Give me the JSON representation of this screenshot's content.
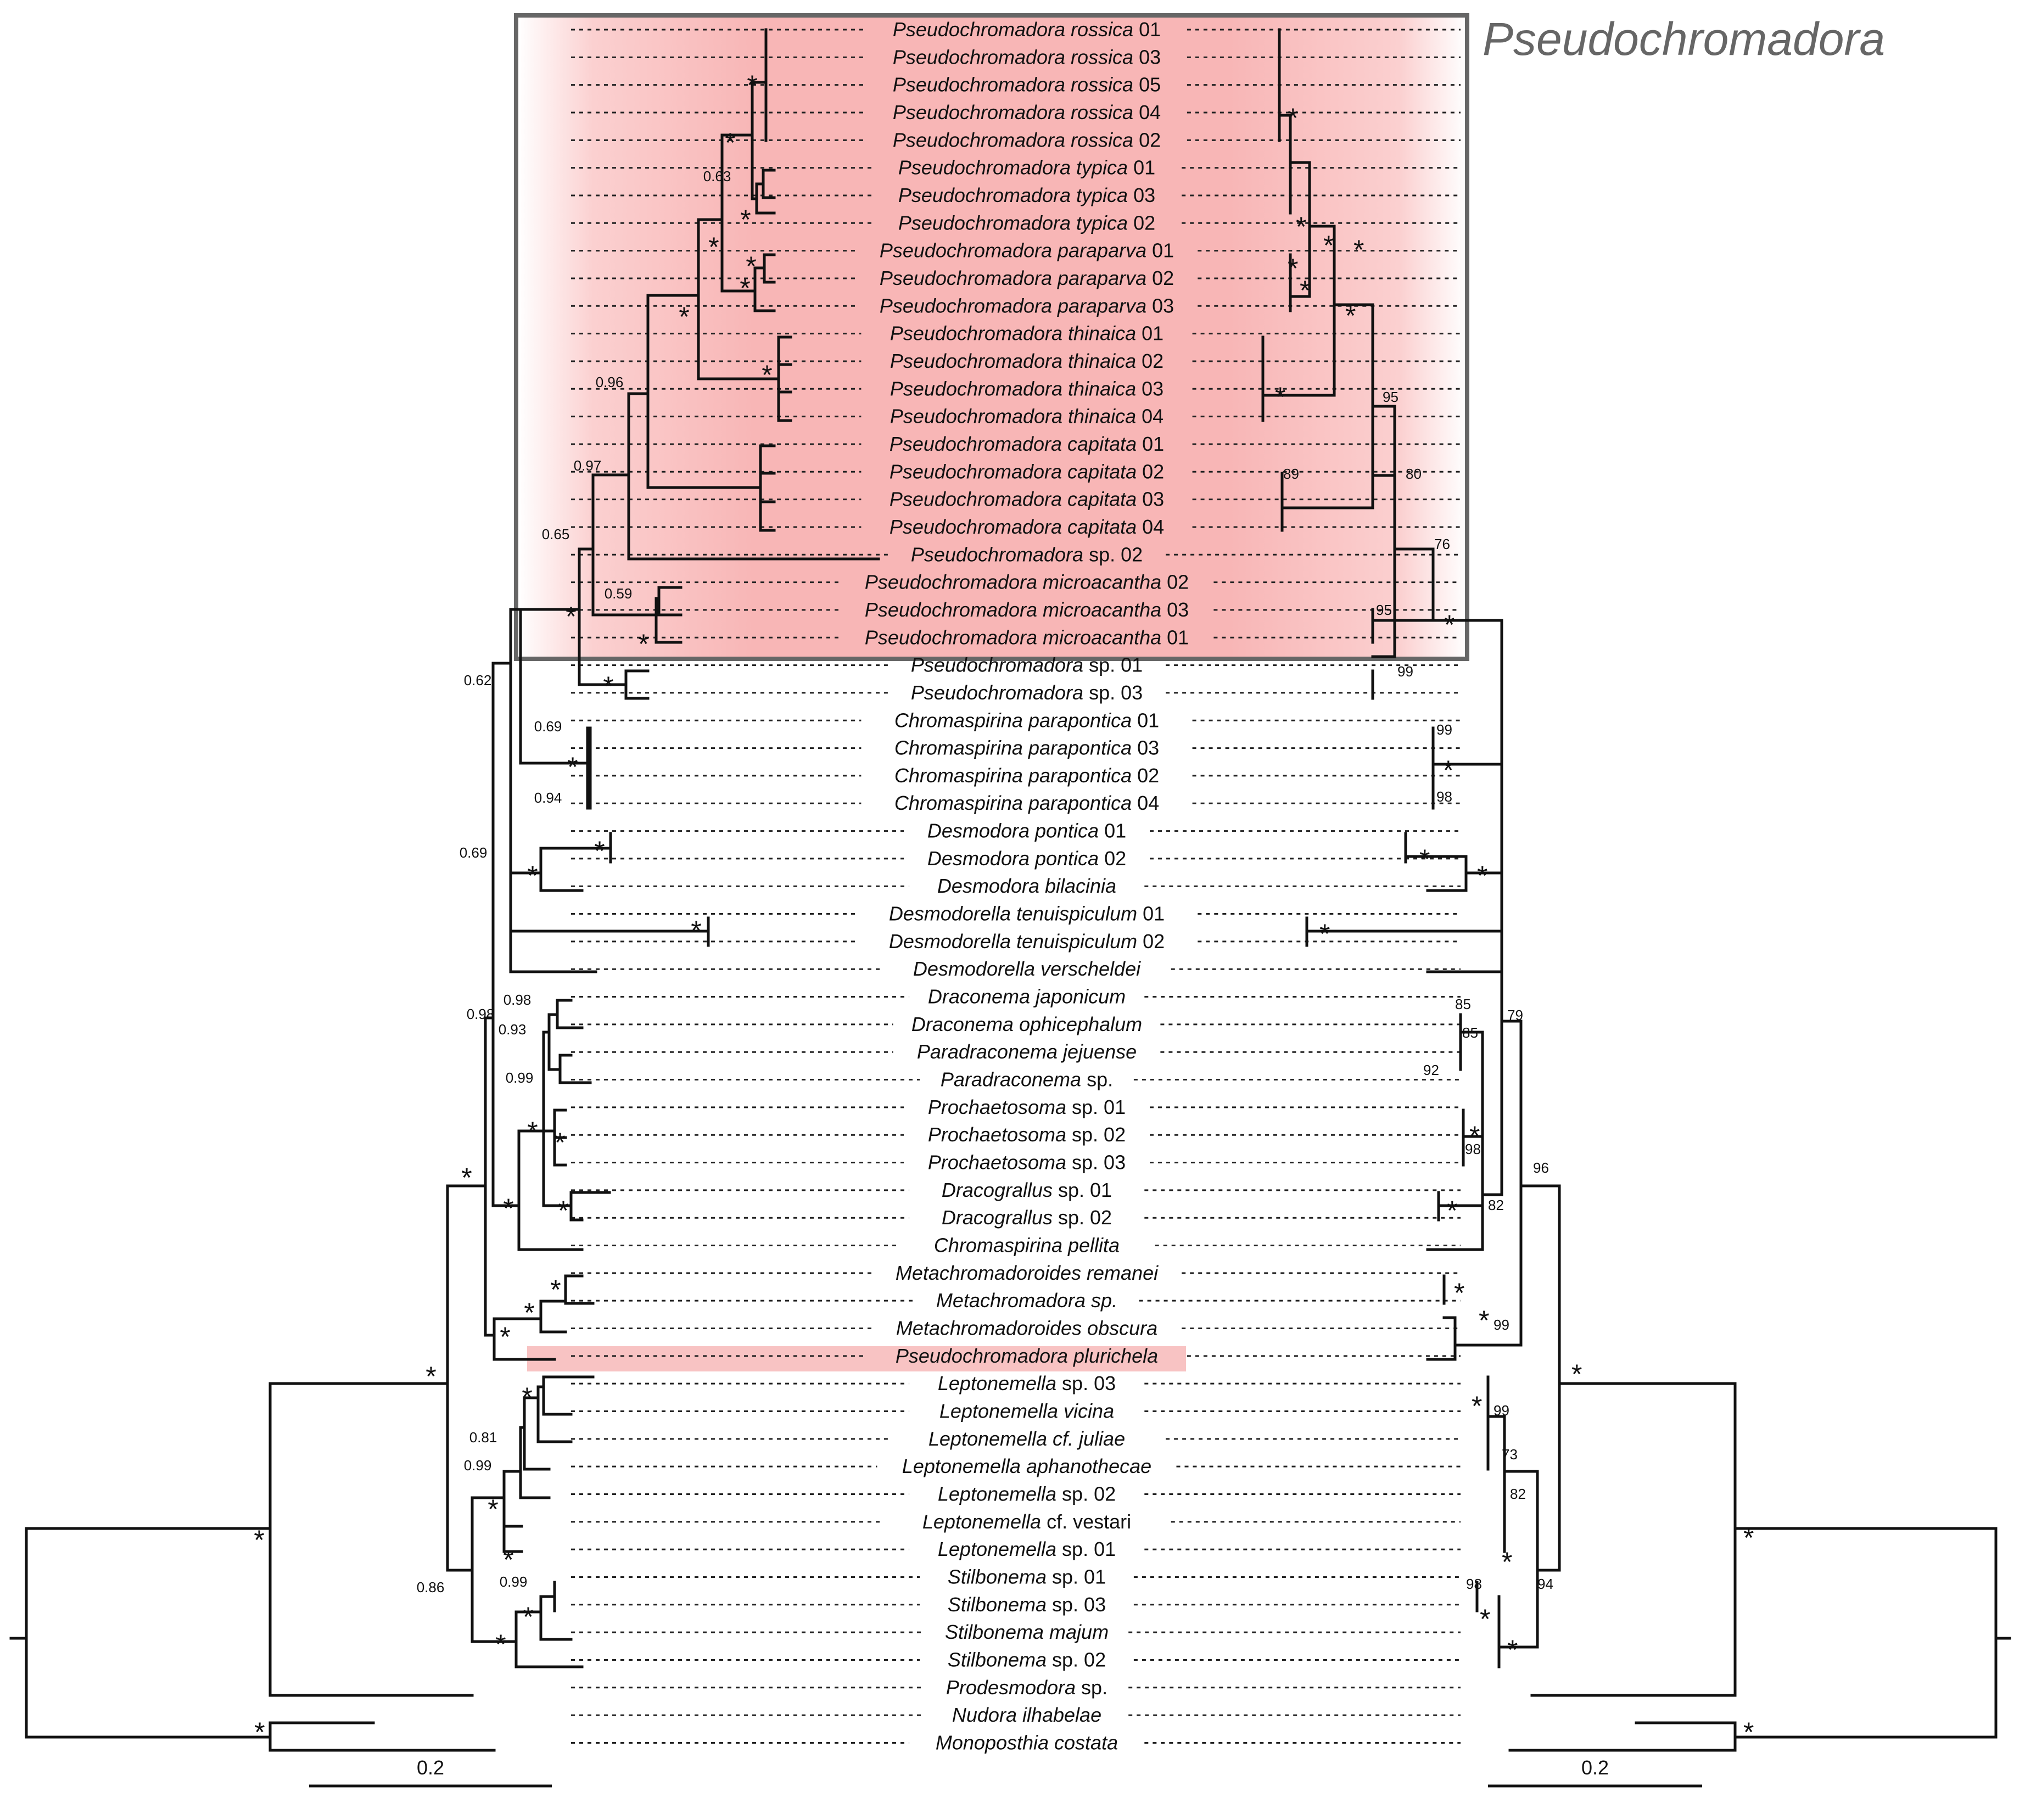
{
  "highlight_label": "Pseudochromadora",
  "colors": {
    "highlight": "#f8b4b4",
    "box": "#666666",
    "line": "#111111"
  },
  "taxa": [
    {
      "genus": "Pseudochromadora rossica",
      "rest": " 01"
    },
    {
      "genus": "Pseudochromadora rossica",
      "rest": " 03"
    },
    {
      "genus": "Pseudochromadora rossica",
      "rest": " 05"
    },
    {
      "genus": "Pseudochromadora rossica",
      "rest": " 04"
    },
    {
      "genus": "Pseudochromadora rossica",
      "rest": " 02"
    },
    {
      "genus": "Pseudochromadora typica",
      "rest": " 01"
    },
    {
      "genus": "Pseudochromadora typica",
      "rest": " 03"
    },
    {
      "genus": "Pseudochromadora typica",
      "rest": " 02"
    },
    {
      "genus": "Pseudochromadora paraparva",
      "rest": " 01"
    },
    {
      "genus": "Pseudochromadora paraparva",
      "rest": " 02"
    },
    {
      "genus": "Pseudochromadora paraparva",
      "rest": " 03"
    },
    {
      "genus": "Pseudochromadora thinaica",
      "rest": " 01"
    },
    {
      "genus": "Pseudochromadora thinaica",
      "rest": " 02"
    },
    {
      "genus": "Pseudochromadora thinaica",
      "rest": " 03"
    },
    {
      "genus": "Pseudochromadora thinaica",
      "rest": " 04"
    },
    {
      "genus": "Pseudochromadora capitata",
      "rest": " 01"
    },
    {
      "genus": "Pseudochromadora capitata",
      "rest": " 02"
    },
    {
      "genus": "Pseudochromadora capitata",
      "rest": " 03"
    },
    {
      "genus": "Pseudochromadora capitata",
      "rest": " 04"
    },
    {
      "genus": "Pseudochromadora",
      "rest": " sp. 02"
    },
    {
      "genus": "Pseudochromadora microacantha",
      "rest": " 02"
    },
    {
      "genus": "Pseudochromadora microacantha",
      "rest": " 03"
    },
    {
      "genus": "Pseudochromadora microacantha",
      "rest": " 01"
    },
    {
      "genus": "Pseudochromadora",
      "rest": " sp. 01"
    },
    {
      "genus": "Pseudochromadora",
      "rest": " sp. 03"
    },
    {
      "genus": "Chromaspirina parapontica",
      "rest": " 01"
    },
    {
      "genus": "Chromaspirina parapontica",
      "rest": " 03"
    },
    {
      "genus": "Chromaspirina parapontica",
      "rest": " 02"
    },
    {
      "genus": "Chromaspirina parapontica",
      "rest": " 04"
    },
    {
      "genus": "Desmodora pontica",
      "rest": " 01"
    },
    {
      "genus": "Desmodora pontica",
      "rest": " 02"
    },
    {
      "genus": "Desmodora bilacinia",
      "rest": ""
    },
    {
      "genus": "Desmodorella tenuispiculum",
      "rest": " 01"
    },
    {
      "genus": "Desmodorella tenuispiculum",
      "rest": " 02"
    },
    {
      "genus": "Desmodorella verscheldei",
      "rest": ""
    },
    {
      "genus": "Draconema japonicum",
      "rest": ""
    },
    {
      "genus": "Draconema ophicephalum",
      "rest": ""
    },
    {
      "genus": "Paradraconema jejuense",
      "rest": ""
    },
    {
      "genus": "Paradraconema",
      "rest": " sp."
    },
    {
      "genus": "Prochaetosoma",
      "rest": " sp. 01"
    },
    {
      "genus": "Prochaetosoma",
      "rest": " sp. 02"
    },
    {
      "genus": "Prochaetosoma",
      "rest": " sp. 03"
    },
    {
      "genus": "Dracograllus",
      "rest": " sp. 01"
    },
    {
      "genus": "Dracograllus",
      "rest": " sp. 02"
    },
    {
      "genus": "Chromaspirina pellita",
      "rest": ""
    },
    {
      "genus": "Metachromadoroides remanei",
      "rest": ""
    },
    {
      "genus": "Metachromadora sp.",
      "rest": ""
    },
    {
      "genus": "Metachromadoroides obscura",
      "rest": ""
    },
    {
      "genus": "Pseudochromadora plurichela",
      "rest": ""
    },
    {
      "genus": "Leptonemella",
      "rest": " sp. 03"
    },
    {
      "genus": "Leptonemella vicina",
      "rest": ""
    },
    {
      "genus": "Leptonemella cf. juliae",
      "rest": ""
    },
    {
      "genus": "Leptonemella aphanothecae",
      "rest": ""
    },
    {
      "genus": "Leptonemella",
      "rest": " sp. 02"
    },
    {
      "genus": "Leptonemella",
      "rest": " cf. vestari"
    },
    {
      "genus": "Leptonemella",
      "rest": " sp. 01"
    },
    {
      "genus": "Stilbonema",
      "rest": " sp. 01"
    },
    {
      "genus": "Stilbonema",
      "rest": " sp. 03"
    },
    {
      "genus": "Stilbonema majum",
      "rest": ""
    },
    {
      "genus": "Stilbonema",
      "rest": " sp. 02"
    },
    {
      "genus": "Prodesmodora",
      "rest": " sp."
    },
    {
      "genus": "Nudora ilhabelae",
      "rest": ""
    },
    {
      "genus": "Monoposthia costata",
      "rest": ""
    }
  ],
  "bayes_labels": {
    "n1": "*",
    "n2": "*",
    "n3": "0.63",
    "n4": "*",
    "n5": "*",
    "n6": "*",
    "n7": "*",
    "n8": "*",
    "n9": "*",
    "n10": "0.96",
    "n11": "0.97",
    "n12": "0.59",
    "n13": "*",
    "n14": "0.65",
    "n15": "*",
    "n16": "*",
    "n17": "0.62",
    "n18": "0.69",
    "n19": "*",
    "n20": "0.94",
    "n21": "*",
    "n22": "*",
    "n23": "0.69",
    "n24": "*",
    "n25": "0.98",
    "n26": "0.98",
    "n27": "0.93",
    "n28": "0.99",
    "n29": "*",
    "n30": "*",
    "n31": "*",
    "n32": "*",
    "n33": "*",
    "n34": "*",
    "n35": "*",
    "n36": "*",
    "n37": "*",
    "n38": "0.81",
    "n39": "0.99",
    "n40": "*",
    "n41": "*",
    "n42": "0.86",
    "n43": "0.99",
    "n44": "*",
    "n45": "*",
    "n46": "*",
    "n47": "*",
    "n48": "*"
  },
  "ml_labels": {
    "m1": "*",
    "m2": "*",
    "m3": "*",
    "m4": "*",
    "m5": "*",
    "m6": "*",
    "m7": "*",
    "m8": "*",
    "m9": "89",
    "m10": "95",
    "m11": "80",
    "m12": "95",
    "m13": "76",
    "m14": "*",
    "m15": "99",
    "m16": "99",
    "m17": "*",
    "m18": "98",
    "m19": "*",
    "m20": "*",
    "m21": "*",
    "m22": "85",
    "m23": "85",
    "m24": "92",
    "m25": "*",
    "m26": "98",
    "m27": "*",
    "m28": "82",
    "m29": "79",
    "m30": "*",
    "m31": "*",
    "m32": "99",
    "m33": "*",
    "m34": "99",
    "m35": "73",
    "m36": "82",
    "m37": "*",
    "m38": "98",
    "m39": "*",
    "m40": "*",
    "m41": "94",
    "m42": "96",
    "m43": "*",
    "m44": "*",
    "m45": "*"
  },
  "scale_bar_label_left": "0.2",
  "scale_bar_label_right": "0.2"
}
